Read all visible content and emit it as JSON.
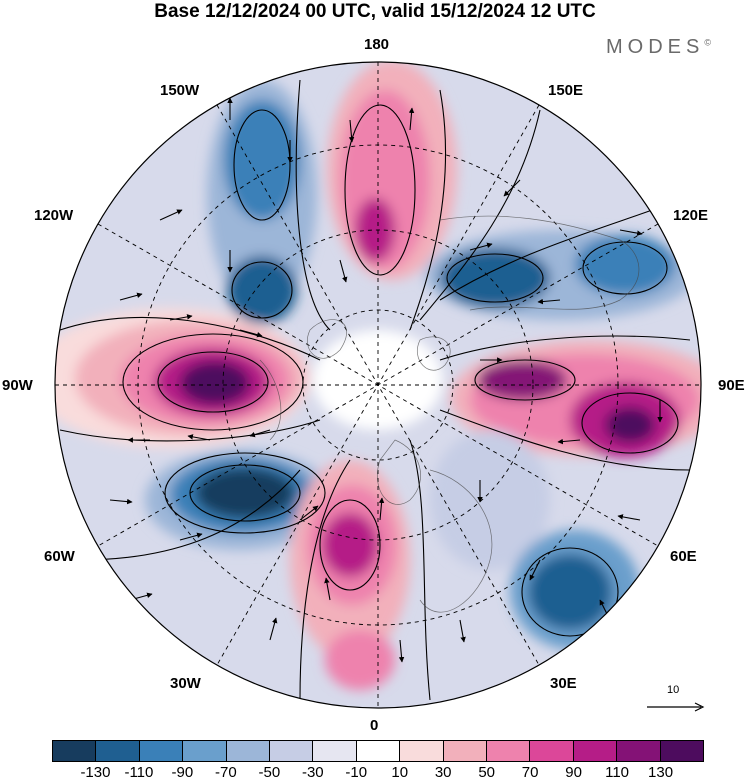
{
  "title": "Base 12/12/2024 00 UTC, valid 15/12/2024 12 UTC",
  "brand": "MODES",
  "brand_mark": "©",
  "longitude_labels": {
    "top": "180",
    "bottom": "0",
    "left": "90W",
    "right": "90E",
    "upper_left": "150W",
    "upper_right": "150E",
    "mid_upper_left": "120W",
    "mid_upper_right": "120E",
    "mid_lower_left": "60W",
    "mid_lower_right": "60E",
    "lower_left": "30W",
    "lower_right": "30E"
  },
  "vector_reference": "10",
  "colorbar": {
    "colors": [
      "#173c5e",
      "#1f5f91",
      "#3a80b8",
      "#6a9fcc",
      "#9cb6d8",
      "#c6cde5",
      "#e6e6f1",
      "#ffffff",
      "#f9dcdc",
      "#f2b0bb",
      "#ee82ad",
      "#dc4799",
      "#b51d87",
      "#841276",
      "#4d0c5e"
    ],
    "tick_labels": [
      "-130",
      "-110",
      "-90",
      "-70",
      "-50",
      "-30",
      "-10",
      "10",
      "30",
      "50",
      "70",
      "90",
      "110",
      "130"
    ]
  }
}
